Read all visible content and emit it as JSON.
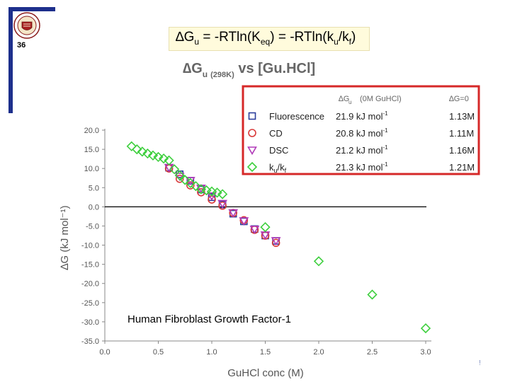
{
  "slide": {
    "page_number": "36",
    "title_parts": {
      "delta": "∆",
      "g": "G",
      "sub_u": "u",
      "eq1": " = -RTln(K",
      "sub_eq": "eq",
      "eq2": ") = -RTln(k",
      "sub_u2": "u",
      "slash": "/k",
      "sub_f": "f",
      "close": ")"
    },
    "logo": "university-seal-icon",
    "corner_mark": "!"
  },
  "colors": {
    "fluorescence": "#2c3e9c",
    "cd": "#d93a3a",
    "dsc": "#b03ab8",
    "ku_kf": "#3ecf3e",
    "legend_border": "#d62828",
    "axis_text": "#555555"
  },
  "chart_data": {
    "type": "scatter",
    "title_parts": {
      "g": "∆G",
      "sub_u": "u",
      "sub_temp": "(298K)",
      "rest": " vs [Gu.HCl]"
    },
    "xlabel": "GuHCl conc (M)",
    "ylabel": "∆G (kJ mol⁻¹)",
    "xlim": [
      0.0,
      3.0
    ],
    "ylim": [
      -35.0,
      20.0
    ],
    "x_ticks": [
      "0.0",
      "0.5",
      "1.0",
      "1.5",
      "2.0",
      "2.5",
      "3.0"
    ],
    "y_ticks": [
      "20.0",
      "15.0",
      "10.0",
      "5.0",
      "0.0",
      "-5.0",
      "-10.0",
      "-15.0",
      "-20.0",
      "-25.0",
      "-30.0",
      "-35.0"
    ],
    "zero_line": true,
    "annotation": "Human Fibroblast Growth Factor-1",
    "legend": {
      "placement": "top-right",
      "header_col1": "∆G",
      "header_col1_sub": "u",
      "header_col2": "(0M GuHCl)",
      "header_col3": "∆G=0",
      "rows": [
        {
          "name": "Fluorescence",
          "dg": "21.9 kJ mol",
          "dg_sup": "-1",
          "mid": "1.13M"
        },
        {
          "name": "CD",
          "dg": "20.8 kJ mol",
          "dg_sup": "-1",
          "mid": "1.11M"
        },
        {
          "name": "DSC",
          "dg": "21.2 kJ mol",
          "dg_sup": "-1",
          "mid": "1.16M"
        },
        {
          "name": "k",
          "name_sub": "u",
          "name_rest": "/k",
          "name_sub2": "f",
          "dg": "21.3 kJ mol",
          "dg_sup": "-1",
          "mid": "1.21M"
        }
      ]
    },
    "series": [
      {
        "name": "Fluorescence",
        "marker": "square",
        "x": [
          0.6,
          0.7,
          0.8,
          0.9,
          1.0,
          1.1,
          1.2,
          1.3,
          1.4,
          1.5,
          1.6
        ],
        "y": [
          10.2,
          8.5,
          6.8,
          4.5,
          2.5,
          0.6,
          -1.8,
          -3.8,
          -5.8,
          -7.5,
          -8.9
        ]
      },
      {
        "name": "CD",
        "marker": "circle",
        "x": [
          0.6,
          0.7,
          0.8,
          0.9,
          1.0,
          1.1,
          1.2,
          1.3,
          1.4,
          1.5,
          1.6
        ],
        "y": [
          10.0,
          7.3,
          5.6,
          3.8,
          1.9,
          0.3,
          -1.6,
          -3.5,
          -6.0,
          -7.5,
          -9.4
        ]
      },
      {
        "name": "DSC",
        "marker": "triangle",
        "x": [
          0.6,
          0.7,
          0.8,
          0.9,
          1.0,
          1.1,
          1.2,
          1.3,
          1.4,
          1.5,
          1.6
        ],
        "y": [
          10.3,
          8.0,
          6.9,
          4.9,
          2.9,
          0.9,
          -1.5,
          -3.6,
          -5.8,
          -7.3,
          -8.8
        ]
      },
      {
        "name": "ku/kf",
        "marker": "diamond",
        "x": [
          0.25,
          0.3,
          0.35,
          0.4,
          0.45,
          0.5,
          0.55,
          0.6,
          0.65,
          0.7,
          0.75,
          0.8,
          0.85,
          0.9,
          0.95,
          1.0,
          1.05,
          1.1,
          1.5,
          2.0,
          2.5,
          3.0
        ],
        "y": [
          15.8,
          15.0,
          14.4,
          13.9,
          13.4,
          13.0,
          12.6,
          12.1,
          9.8,
          8.2,
          7.0,
          6.2,
          5.4,
          4.6,
          4.3,
          4.0,
          3.7,
          3.3,
          -5.3,
          -14.2,
          -22.9,
          -31.7
        ]
      }
    ]
  }
}
